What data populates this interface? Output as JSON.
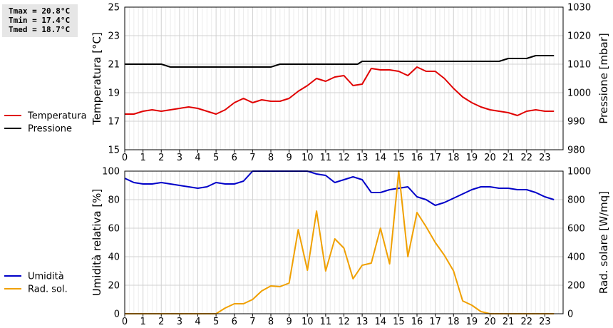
{
  "stats": {
    "tmax": "Tmax = 20.8°C",
    "tmin": "Tmin = 17.4°C",
    "tmed": "Tmed = 18.7°C"
  },
  "chart_data": [
    {
      "type": "line",
      "title": "",
      "xlabel": "",
      "x_ticks": [
        "0",
        "1",
        "2",
        "3",
        "4",
        "5",
        "6",
        "7",
        "8",
        "9",
        "10",
        "11",
        "12",
        "13",
        "14",
        "15",
        "16",
        "17",
        "18",
        "19",
        "20",
        "21",
        "22",
        "23"
      ],
      "xlim": [
        0,
        24
      ],
      "grid": true,
      "legend_placement": "left",
      "y_left": {
        "label": "Temperatura [°C]",
        "ylim": [
          15,
          25
        ],
        "ticks": [
          "15",
          "17",
          "19",
          "21",
          "23",
          "25"
        ]
      },
      "y_right": {
        "label": "Pressione [mbar]",
        "ylim": [
          980,
          1030
        ],
        "ticks": [
          "980",
          "990",
          "1000",
          "1010",
          "1020",
          "1030"
        ]
      },
      "series": [
        {
          "name": "Temperatura",
          "axis": "left",
          "color": "#e00000",
          "x": [
            0,
            0.5,
            1,
            1.5,
            2,
            2.5,
            3,
            3.5,
            4,
            4.5,
            5,
            5.5,
            6,
            6.5,
            7,
            7.5,
            8,
            8.5,
            9,
            9.5,
            10,
            10.5,
            11,
            11.5,
            12,
            12.5,
            13,
            13.5,
            14,
            14.5,
            15,
            15.5,
            16,
            16.5,
            17,
            17.5,
            18,
            18.5,
            19,
            19.5,
            20,
            20.5,
            21,
            21.5,
            22,
            22.5,
            23,
            23.5
          ],
          "values": [
            17.5,
            17.5,
            17.7,
            17.8,
            17.7,
            17.8,
            17.9,
            18.0,
            17.9,
            17.7,
            17.5,
            17.8,
            18.3,
            18.6,
            18.3,
            18.5,
            18.4,
            18.4,
            18.6,
            19.1,
            19.5,
            20.0,
            19.8,
            20.1,
            20.2,
            19.5,
            19.6,
            20.7,
            20.6,
            20.6,
            20.5,
            20.2,
            20.8,
            20.5,
            20.5,
            20.0,
            19.3,
            18.7,
            18.3,
            18.0,
            17.8,
            17.7,
            17.6,
            17.4,
            17.7,
            17.8,
            17.7,
            17.7
          ]
        },
        {
          "name": "Pressione",
          "axis": "right",
          "color": "#000000",
          "x": [
            0,
            2,
            2.5,
            8,
            8.5,
            12.75,
            13,
            20.5,
            21,
            22,
            22.5,
            23.5
          ],
          "values": [
            1010,
            1010,
            1009,
            1009,
            1010,
            1010,
            1011,
            1011,
            1012,
            1012,
            1013,
            1013
          ]
        }
      ]
    },
    {
      "type": "line",
      "title": "",
      "xlabel": "",
      "x_ticks": [
        "0",
        "1",
        "2",
        "3",
        "4",
        "5",
        "6",
        "7",
        "8",
        "9",
        "10",
        "11",
        "12",
        "13",
        "14",
        "15",
        "16",
        "17",
        "18",
        "19",
        "20",
        "21",
        "22",
        "23"
      ],
      "xlim": [
        0,
        24
      ],
      "grid": true,
      "legend_placement": "left",
      "y_left": {
        "label": "Umidità relativa [%]",
        "ylim": [
          0,
          100
        ],
        "ticks": [
          "0",
          "20",
          "40",
          "60",
          "80",
          "100"
        ]
      },
      "y_right": {
        "label": "Rad. solare [W/mq]",
        "ylim": [
          0,
          1000
        ],
        "ticks": [
          "0",
          "200",
          "400",
          "600",
          "800",
          "1000"
        ]
      },
      "series": [
        {
          "name": "Umidità",
          "axis": "left",
          "color": "#0000c8",
          "x": [
            0,
            0.5,
            1,
            1.5,
            2,
            2.5,
            3,
            3.5,
            4,
            4.5,
            5,
            5.5,
            6,
            6.5,
            7,
            7.5,
            8,
            8.5,
            9,
            9.5,
            10,
            10.5,
            11,
            11.5,
            12,
            12.5,
            13,
            13.5,
            14,
            14.5,
            15,
            15.5,
            16,
            16.5,
            17,
            17.5,
            18,
            18.5,
            19,
            19.5,
            20,
            20.5,
            21,
            21.5,
            22,
            22.5,
            23,
            23.5
          ],
          "values": [
            95,
            92,
            91,
            91,
            92,
            91,
            90,
            89,
            88,
            89,
            92,
            91,
            91,
            93,
            100,
            100,
            100,
            100,
            100,
            100,
            100,
            98,
            97,
            92,
            94,
            96,
            94,
            85,
            85,
            87,
            88,
            89,
            82,
            80,
            76,
            78,
            81,
            84,
            87,
            89,
            89,
            88,
            88,
            87,
            87,
            85,
            82,
            80
          ]
        },
        {
          "name": "Rad. sol.",
          "axis": "right",
          "color": "#f0a000",
          "x": [
            0,
            0.5,
            1,
            1.5,
            2,
            2.5,
            3,
            3.5,
            4,
            4.5,
            5,
            5.5,
            6,
            6.5,
            7,
            7.5,
            8,
            8.5,
            9,
            9.5,
            10,
            10.5,
            11,
            11.5,
            12,
            12.5,
            13,
            13.5,
            14,
            14.5,
            15,
            15.5,
            16,
            16.5,
            17,
            17.5,
            18,
            18.5,
            19,
            19.5,
            20,
            20.5,
            21,
            21.5,
            22,
            22.5,
            23,
            23.5
          ],
          "values": [
            0,
            0,
            0,
            0,
            0,
            0,
            0,
            0,
            0,
            0,
            0,
            40,
            70,
            70,
            100,
            160,
            195,
            190,
            215,
            590,
            305,
            720,
            300,
            525,
            460,
            245,
            340,
            355,
            600,
            350,
            1000,
            400,
            710,
            610,
            500,
            410,
            300,
            90,
            60,
            15,
            0,
            0,
            0,
            0,
            0,
            0,
            0,
            0
          ]
        }
      ]
    }
  ]
}
